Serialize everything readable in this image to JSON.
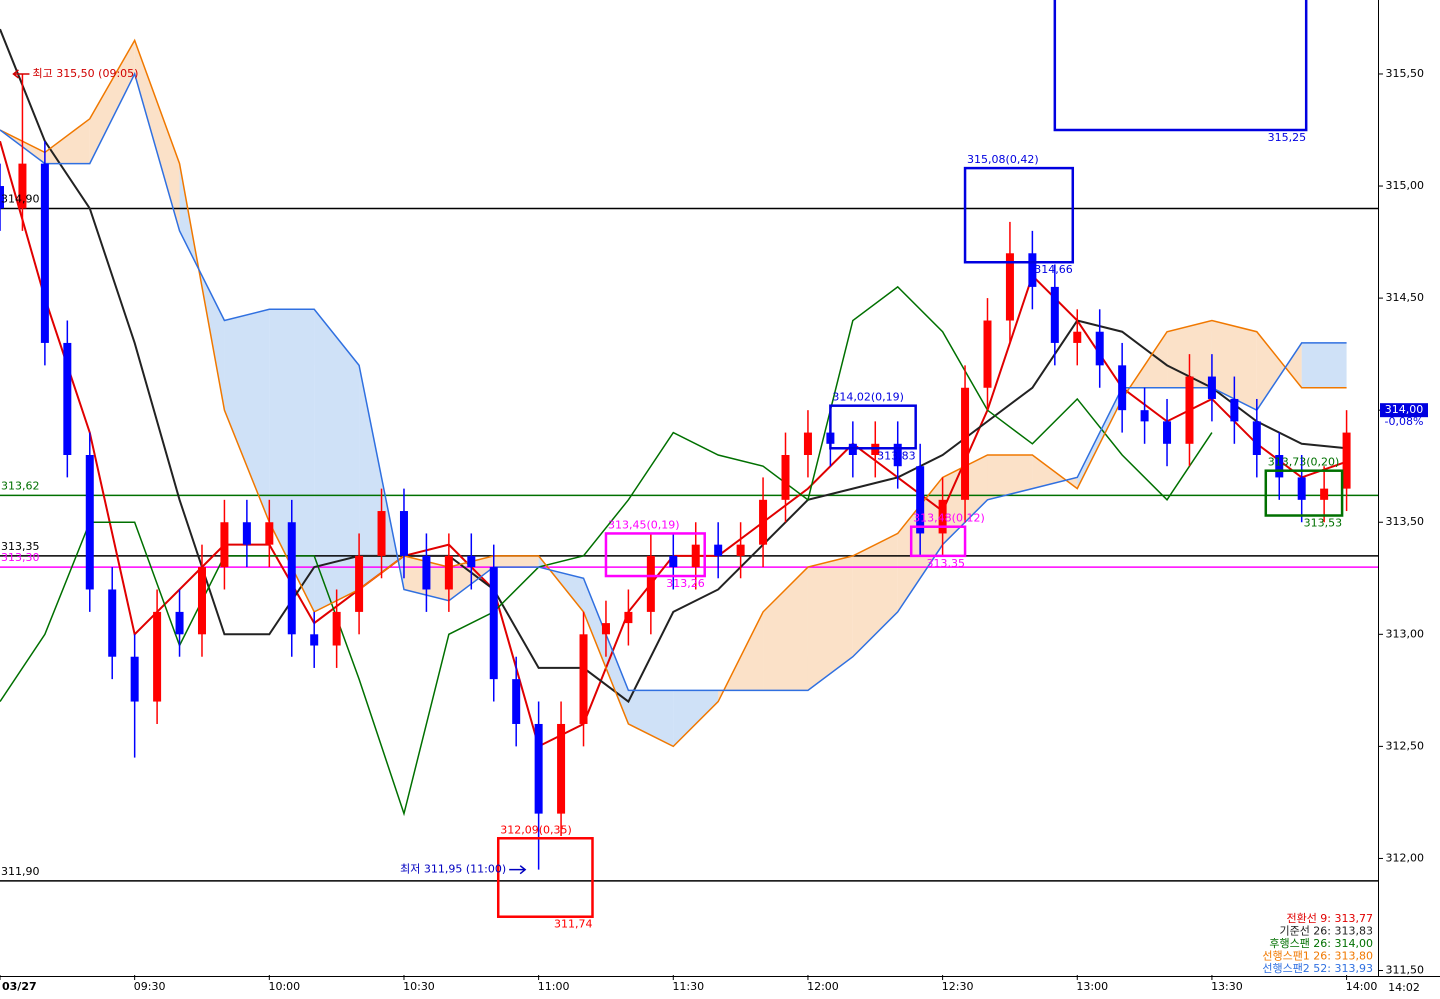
{
  "chart_data": {
    "type": "candlestick",
    "xlim": [
      0,
      307
    ],
    "ylim": [
      311.48,
      315.83
    ],
    "xticks": [
      {
        "value": 0,
        "label": "03/27"
      },
      {
        "value": 30,
        "label": "09:30"
      },
      {
        "value": 60,
        "label": "10:00"
      },
      {
        "value": 90,
        "label": "10:30"
      },
      {
        "value": 120,
        "label": "11:00"
      },
      {
        "value": 150,
        "label": "11:30"
      },
      {
        "value": 180,
        "label": "12:00"
      },
      {
        "value": 210,
        "label": "12:30"
      },
      {
        "value": 240,
        "label": "13:00"
      },
      {
        "value": 270,
        "label": "13:30"
      },
      {
        "value": 300,
        "label": "14:00"
      }
    ],
    "current_time": "14:02",
    "yticks": [
      {
        "value": 311.5,
        "label": "311,50"
      },
      {
        "value": 312,
        "label": "312,00"
      },
      {
        "value": 312.5,
        "label": "312,50"
      },
      {
        "value": 313,
        "label": "313,00"
      },
      {
        "value": 313.5,
        "label": "313,50"
      },
      {
        "value": 314,
        "label": "314,00"
      },
      {
        "value": 314.5,
        "label": "314,50"
      },
      {
        "value": 315,
        "label": "315,00"
      },
      {
        "value": 315.5,
        "label": "315,50"
      }
    ],
    "up_color": "#ff0000",
    "down_color": "#0000ff",
    "candles": {
      "x": [
        0,
        5,
        10,
        15,
        20,
        25,
        30,
        35,
        40,
        45,
        50,
        55,
        60,
        65,
        70,
        75,
        80,
        85,
        90,
        95,
        100,
        105,
        110,
        115,
        120,
        125,
        130,
        135,
        140,
        145,
        150,
        155,
        160,
        165,
        170,
        175,
        180,
        185,
        190,
        195,
        200,
        205,
        210,
        215,
        220,
        225,
        230,
        235,
        240,
        245,
        250,
        255,
        260,
        265,
        270,
        275,
        280,
        285,
        290,
        295,
        300
      ],
      "open": [
        315.0,
        314.9,
        315.1,
        314.3,
        313.8,
        313.2,
        312.9,
        312.7,
        313.1,
        313.0,
        313.3,
        313.5,
        313.4,
        313.5,
        313.0,
        312.95,
        313.1,
        313.35,
        313.55,
        313.35,
        313.2,
        313.35,
        313.3,
        312.8,
        312.6,
        312.2,
        312.6,
        313.0,
        313.05,
        313.1,
        313.35,
        313.3,
        313.4,
        313.35,
        313.4,
        313.6,
        313.8,
        313.9,
        313.85,
        313.8,
        313.85,
        313.75,
        313.45,
        313.6,
        314.1,
        314.4,
        314.7,
        314.55,
        314.3,
        314.35,
        314.2,
        314.0,
        313.95,
        313.85,
        314.15,
        314.05,
        313.95,
        313.8,
        313.7,
        313.6,
        313.65
      ],
      "high": [
        315.1,
        315.5,
        315.2,
        314.4,
        313.9,
        313.3,
        313.0,
        313.2,
        313.2,
        313.4,
        313.6,
        313.6,
        313.6,
        313.6,
        313.1,
        313.2,
        313.45,
        313.65,
        313.65,
        313.45,
        313.45,
        313.45,
        313.4,
        312.9,
        312.7,
        312.7,
        313.1,
        313.15,
        313.2,
        313.45,
        313.45,
        313.5,
        313.5,
        313.5,
        313.7,
        313.9,
        314.0,
        314.0,
        313.95,
        313.95,
        313.95,
        313.85,
        313.7,
        314.2,
        314.5,
        314.84,
        314.8,
        314.65,
        314.45,
        314.45,
        314.3,
        314.1,
        314.05,
        314.25,
        314.25,
        314.15,
        314.05,
        313.9,
        313.8,
        313.75,
        314.0
      ],
      "low": [
        314.8,
        314.8,
        314.2,
        313.7,
        313.1,
        312.8,
        312.45,
        312.6,
        312.9,
        312.9,
        313.2,
        313.3,
        313.3,
        312.9,
        312.85,
        312.85,
        313.0,
        313.25,
        313.25,
        313.1,
        313.1,
        313.2,
        312.7,
        312.5,
        311.95,
        312.1,
        312.5,
        312.9,
        312.95,
        313.0,
        313.2,
        313.2,
        313.25,
        313.25,
        313.3,
        313.5,
        313.7,
        313.75,
        313.7,
        313.7,
        313.65,
        313.35,
        313.35,
        313.5,
        314.0,
        314.3,
        314.45,
        314.2,
        314.2,
        314.1,
        313.9,
        313.85,
        313.75,
        313.75,
        313.95,
        313.85,
        313.7,
        313.6,
        313.5,
        313.5,
        313.55
      ],
      "close": [
        314.9,
        315.1,
        314.3,
        313.8,
        313.2,
        312.9,
        312.7,
        313.1,
        313.0,
        313.3,
        313.5,
        313.4,
        313.5,
        313.0,
        312.95,
        313.1,
        313.35,
        313.55,
        313.35,
        313.2,
        313.35,
        313.3,
        312.8,
        312.6,
        312.2,
        312.6,
        313.0,
        313.05,
        313.1,
        313.35,
        313.3,
        313.4,
        313.35,
        313.4,
        313.6,
        313.8,
        313.9,
        313.85,
        313.8,
        313.85,
        313.75,
        313.45,
        313.6,
        314.1,
        314.4,
        314.7,
        314.55,
        314.3,
        314.35,
        314.2,
        314.0,
        313.95,
        313.85,
        314.15,
        314.05,
        313.95,
        313.8,
        313.7,
        313.6,
        313.65,
        313.9
      ]
    },
    "series": [
      {
        "name": "전환선 9: 313,77",
        "color": "#e00000",
        "x": [
          0,
          10,
          20,
          30,
          40,
          50,
          60,
          70,
          80,
          90,
          100,
          110,
          120,
          130,
          140,
          150,
          160,
          170,
          180,
          190,
          200,
          210,
          220,
          230,
          240,
          250,
          260,
          270,
          280,
          290,
          300
        ],
        "values": [
          315.2,
          314.5,
          313.9,
          313.0,
          313.2,
          313.4,
          313.4,
          313.05,
          313.2,
          313.35,
          313.4,
          313.2,
          312.5,
          312.6,
          313.1,
          313.35,
          313.35,
          313.5,
          313.65,
          313.85,
          313.7,
          313.55,
          314.0,
          314.6,
          314.4,
          314.1,
          313.95,
          314.05,
          313.85,
          313.7,
          313.77
        ]
      },
      {
        "name": "기준선 26: 313,83",
        "color": "#222222",
        "x": [
          0,
          10,
          20,
          30,
          40,
          50,
          60,
          70,
          80,
          90,
          100,
          110,
          120,
          130,
          140,
          150,
          160,
          170,
          180,
          190,
          200,
          210,
          220,
          230,
          240,
          250,
          260,
          270,
          280,
          290,
          300
        ],
        "values": [
          315.7,
          315.2,
          314.9,
          314.3,
          313.6,
          313.0,
          313.0,
          313.3,
          313.35,
          313.35,
          313.35,
          313.2,
          312.85,
          312.85,
          312.7,
          313.1,
          313.2,
          313.4,
          313.6,
          313.65,
          313.7,
          313.8,
          313.95,
          314.1,
          314.4,
          314.35,
          314.2,
          314.1,
          313.95,
          313.85,
          313.83
        ]
      },
      {
        "name": "후행스팬 26: 314,00",
        "color": "#007000",
        "x": [
          0,
          10,
          20,
          30,
          40,
          50,
          60,
          70,
          80,
          90,
          100,
          110,
          120,
          130,
          140,
          150,
          160,
          170,
          180,
          190,
          200,
          210,
          220,
          230,
          240,
          250,
          260,
          270
        ],
        "values": [
          312.7,
          313.0,
          313.5,
          313.5,
          312.95,
          313.35,
          313.35,
          313.35,
          312.8,
          312.2,
          313.0,
          313.1,
          313.3,
          313.35,
          313.6,
          313.9,
          313.8,
          313.75,
          313.6,
          314.4,
          314.55,
          314.35,
          314.0,
          313.85,
          314.05,
          313.8,
          313.6,
          313.9
        ]
      },
      {
        "name": "선행스팬1 26: 313,80",
        "color": "#f07800",
        "x": [
          0,
          10,
          20,
          30,
          40,
          50,
          60,
          70,
          80,
          90,
          100,
          110,
          120,
          130,
          140,
          150,
          160,
          170,
          180,
          190,
          200,
          210,
          220,
          230,
          240,
          250,
          260,
          270,
          280,
          290,
          300
        ],
        "values": [
          315.25,
          315.15,
          315.3,
          315.65,
          315.1,
          314.0,
          313.5,
          313.1,
          313.2,
          313.35,
          313.3,
          313.35,
          313.35,
          313.1,
          312.6,
          312.5,
          312.7,
          313.1,
          313.3,
          313.35,
          313.45,
          313.7,
          313.8,
          313.8,
          313.65,
          314.05,
          314.35,
          314.4,
          314.35,
          314.1,
          314.1
        ]
      },
      {
        "name": "선행스팬2 52: 313,93",
        "color": "#3070e0",
        "x": [
          0,
          10,
          20,
          30,
          40,
          50,
          60,
          70,
          80,
          90,
          100,
          110,
          120,
          130,
          140,
          150,
          160,
          170,
          180,
          190,
          200,
          210,
          220,
          230,
          240,
          250,
          260,
          270,
          280,
          290,
          300
        ],
        "values": [
          315.25,
          315.1,
          315.1,
          315.5,
          314.8,
          314.4,
          314.45,
          314.45,
          314.2,
          313.2,
          313.15,
          313.3,
          313.3,
          313.25,
          312.75,
          312.75,
          312.75,
          312.75,
          312.75,
          312.9,
          313.1,
          313.4,
          313.6,
          313.65,
          313.7,
          314.1,
          314.1,
          314.1,
          314.0,
          314.3,
          314.3
        ]
      }
    ],
    "hlines": [
      {
        "value": 314.9,
        "label": "314,90",
        "color": "#000000"
      },
      {
        "value": 313.62,
        "label": "313,62",
        "color": "#007000"
      },
      {
        "value": 313.35,
        "label": "313,35",
        "color": "#000000"
      },
      {
        "value": 313.3,
        "label": "313,30",
        "color": "#ff00ff"
      },
      {
        "value": 311.9,
        "label": "311,90",
        "color": "#000000"
      }
    ],
    "boxes": [
      {
        "start": 235,
        "end": 291,
        "high": 315.9,
        "low": 315.25,
        "low_label": "315,25",
        "color": "#0000e0"
      },
      {
        "start": 215,
        "end": 239,
        "high": 315.08,
        "low": 314.66,
        "high_label": "315,08(0,42)",
        "low_label": "314,66",
        "color": "#0000e0"
      },
      {
        "start": 185,
        "end": 204,
        "high": 314.02,
        "low": 313.83,
        "high_label": "314,02(0,19)",
        "low_label": "313,83",
        "color": "#0000e0"
      },
      {
        "start": 135,
        "end": 157,
        "high": 313.45,
        "low": 313.26,
        "high_label": "313,45(0,19)",
        "low_label": "313,26",
        "color": "#ff00ff"
      },
      {
        "start": 203,
        "end": 215,
        "high": 313.48,
        "low": 313.35,
        "high_label": "313,48(0,12)",
        "low_label": "313,35",
        "color": "#ff00ff"
      },
      {
        "start": 111,
        "end": 132,
        "high": 312.09,
        "low": 311.74,
        "high_label": "312,09(0,35)",
        "low_label": "311,74",
        "color": "#ff0000"
      },
      {
        "start": 282,
        "end": 299,
        "high": 313.73,
        "low": 313.53,
        "high_label": "313,73(0,20)",
        "low_label": "313,53",
        "color": "#007000"
      }
    ],
    "extremes": [
      {
        "text": "최고 315,50 (09:05)",
        "x": 3,
        "value": 315.5,
        "color": "#d00000",
        "side": "right"
      },
      {
        "text": "최저 311,95 (11:00)",
        "x": 117,
        "value": 311.95,
        "color": "#0000c0",
        "side": "left"
      }
    ],
    "current_price": {
      "value": 314.0,
      "label": "314,00",
      "change": "-0,08%"
    }
  }
}
